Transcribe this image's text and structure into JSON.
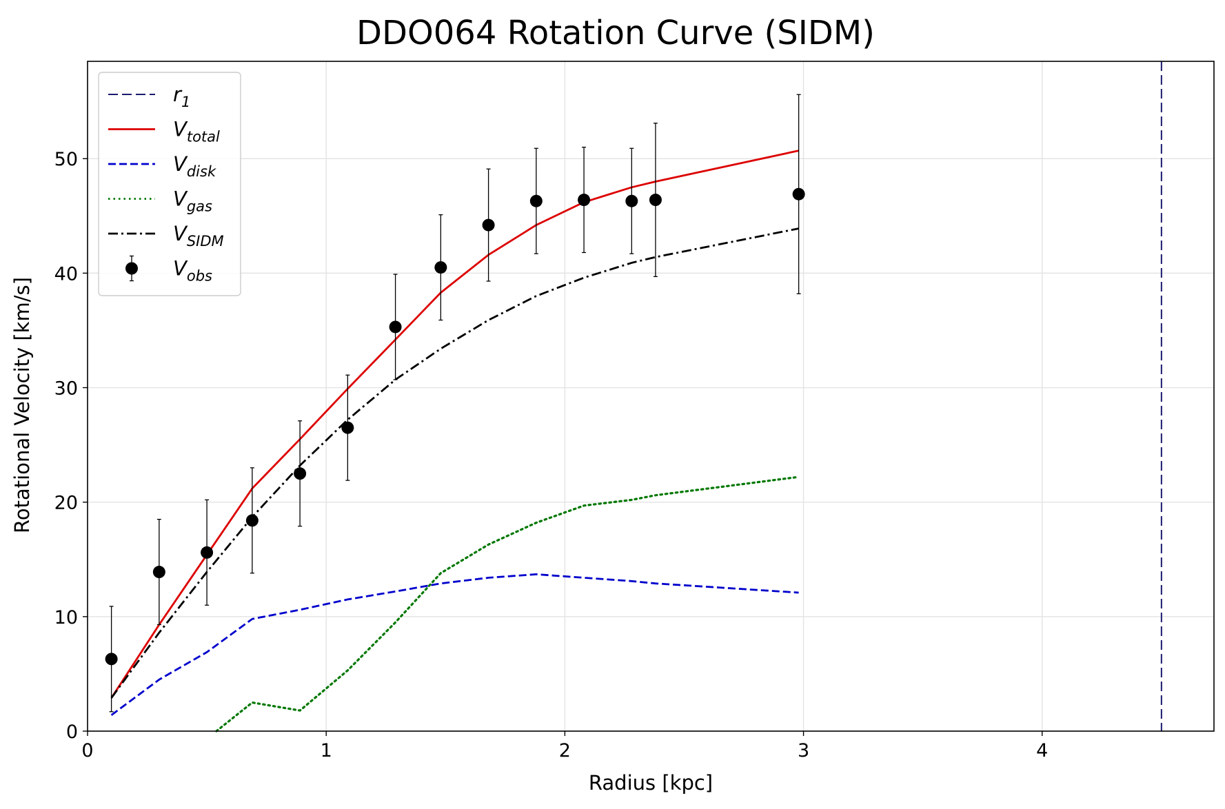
{
  "chart_data": {
    "type": "line",
    "title": "DDO064 Rotation Curve (SIDM)",
    "xlabel": "Radius [kpc]",
    "ylabel": "Rotational Velocity [km/s]",
    "xlim": [
      0,
      4.72
    ],
    "ylim": [
      0,
      58.5
    ],
    "xticks": [
      0,
      1,
      2,
      3,
      4
    ],
    "yticks": [
      0,
      10,
      20,
      30,
      40,
      50
    ],
    "grid": true,
    "legend_position": "top-left",
    "x": [
      0.1,
      0.3,
      0.5,
      0.69,
      0.89,
      1.09,
      1.29,
      1.48,
      1.68,
      1.88,
      2.08,
      2.28,
      2.38,
      2.98
    ],
    "r1": {
      "x": 4.5,
      "color": "#1a1a6e",
      "legend": "r",
      "legend_sub": "1"
    },
    "series": [
      {
        "name": "V",
        "name_sub": "total",
        "style": "solid",
        "color": "#dd0000",
        "values": [
          2.9,
          9.3,
          15.4,
          21.2,
          25.5,
          29.9,
          34.2,
          38.3,
          41.6,
          44.2,
          46.2,
          47.5,
          48.0,
          50.7
        ]
      },
      {
        "name": "V",
        "name_sub": "disk",
        "style": "dashed",
        "color": "#0000cc",
        "values": [
          1.4,
          4.5,
          6.9,
          9.8,
          10.6,
          11.5,
          12.2,
          12.9,
          13.4,
          13.7,
          13.4,
          13.1,
          12.9,
          12.1
        ]
      },
      {
        "name": "V",
        "name_sub": "gas",
        "style": "dotted",
        "color": "#007700",
        "x": [
          0.54,
          0.69,
          0.89,
          1.09,
          1.29,
          1.48,
          1.68,
          1.88,
          2.08,
          2.28,
          2.38,
          2.98
        ],
        "values": [
          0.0,
          2.5,
          1.8,
          5.3,
          9.5,
          13.8,
          16.3,
          18.2,
          19.7,
          20.2,
          20.6,
          22.2
        ]
      },
      {
        "name": "V",
        "name_sub": "SIDM",
        "style": "dashdot",
        "color": "#000000",
        "values": [
          2.9,
          8.6,
          13.9,
          18.7,
          23.2,
          27.2,
          30.7,
          33.4,
          35.9,
          38.0,
          39.6,
          40.9,
          41.4,
          43.9
        ]
      }
    ],
    "observed": {
      "name": "V",
      "name_sub": "obs",
      "color": "#000000",
      "values": [
        6.3,
        13.9,
        15.6,
        18.4,
        22.5,
        26.5,
        35.3,
        40.5,
        44.2,
        46.3,
        46.4,
        46.3,
        46.4,
        46.9
      ],
      "errors": [
        4.6,
        4.6,
        4.6,
        4.6,
        4.6,
        4.6,
        4.6,
        4.6,
        4.9,
        4.6,
        4.6,
        4.6,
        6.7,
        8.7
      ]
    }
  }
}
